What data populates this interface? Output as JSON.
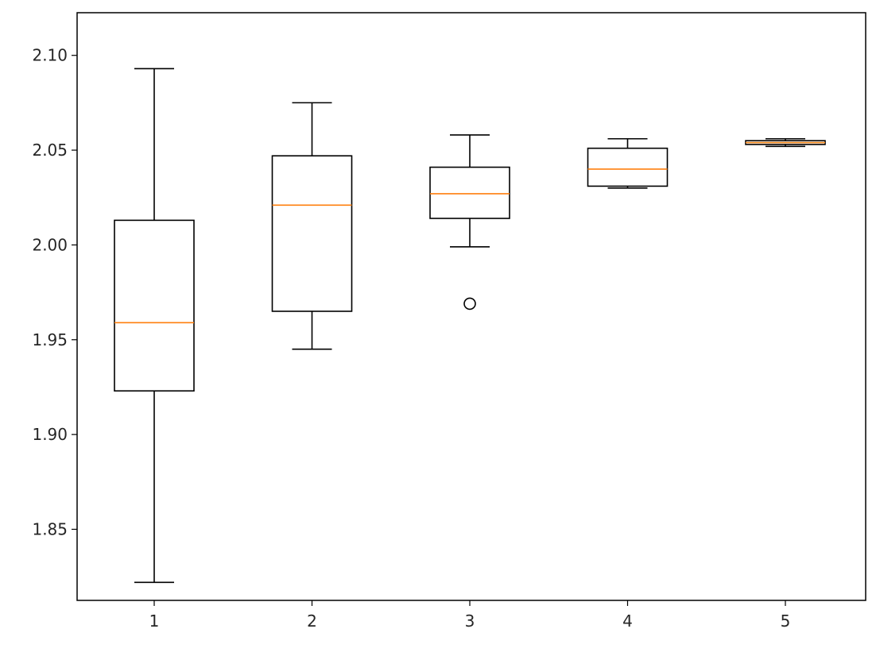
{
  "chart_data": {
    "type": "box",
    "title": "",
    "xlabel": "",
    "ylabel": "",
    "categories": [
      "1",
      "2",
      "3",
      "4",
      "5"
    ],
    "ylim": [
      1.8125,
      2.1225
    ],
    "yticks": [
      1.85,
      1.9,
      1.95,
      2.0,
      2.05,
      2.1
    ],
    "ytick_labels": [
      "1.85",
      "1.90",
      "1.95",
      "2.00",
      "2.05",
      "2.10"
    ],
    "grid": false,
    "legend": "none",
    "boxes": [
      {
        "category": "1",
        "whisker_low": 1.822,
        "q1": 1.923,
        "median": 1.959,
        "q3": 2.013,
        "whisker_high": 2.093,
        "outliers": []
      },
      {
        "category": "2",
        "whisker_low": 1.945,
        "q1": 1.965,
        "median": 2.021,
        "q3": 2.047,
        "whisker_high": 2.075,
        "outliers": []
      },
      {
        "category": "3",
        "whisker_low": 1.999,
        "q1": 2.014,
        "median": 2.027,
        "q3": 2.041,
        "whisker_high": 2.058,
        "outliers": [
          1.969
        ]
      },
      {
        "category": "4",
        "whisker_low": 2.03,
        "q1": 2.031,
        "median": 2.04,
        "q3": 2.051,
        "whisker_high": 2.056,
        "outliers": []
      },
      {
        "category": "5",
        "whisker_low": 2.052,
        "q1": 2.053,
        "median": 2.054,
        "q3": 2.055,
        "whisker_high": 2.056,
        "outliers": []
      }
    ],
    "colors": {
      "box": "#000000",
      "median": "#ff7f0e",
      "axes": "#000000"
    }
  }
}
